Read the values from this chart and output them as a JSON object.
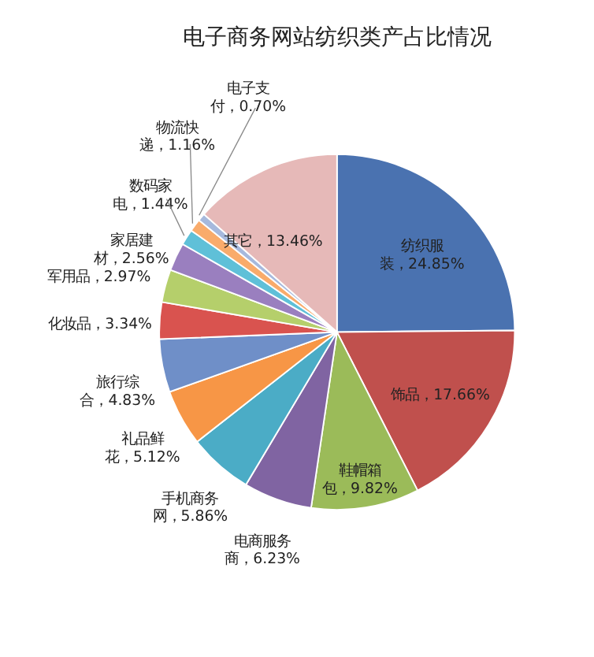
{
  "chart_data": {
    "type": "pie",
    "title": "电子商务网站纺织类产占比情况",
    "categories": [
      "纺织服装",
      "饰品",
      "鞋帽箱包",
      "电商服务商",
      "手机商务网",
      "礼品鲜花",
      "旅行综合",
      "化妆品",
      "军用品",
      "家居建材",
      "数码家电",
      "物流快递",
      "电子支付",
      "其它"
    ],
    "values": [
      24.85,
      17.66,
      9.82,
      6.23,
      5.86,
      5.12,
      4.83,
      3.34,
      2.97,
      2.56,
      1.44,
      1.16,
      0.7,
      13.46
    ],
    "value_labels": [
      "24.85%",
      "17.66%",
      "9.82%",
      "6.23%",
      "5.86%",
      "5.12%",
      "4.83%",
      "3.34%",
      "2.97%",
      "2.56%",
      "1.44%",
      "1.16%",
      "0.70%",
      "13.46%"
    ],
    "colors": [
      "#4a72b0",
      "#c0504d",
      "#9bbb59",
      "#8064a2",
      "#4bacc6",
      "#f79646",
      "#6f8fc8",
      "#d9534f",
      "#b5cf6b",
      "#9a7fbf",
      "#5fc0d8",
      "#f9ab6b",
      "#a6b9dd",
      "#e6b9b8"
    ],
    "legend": false
  }
}
